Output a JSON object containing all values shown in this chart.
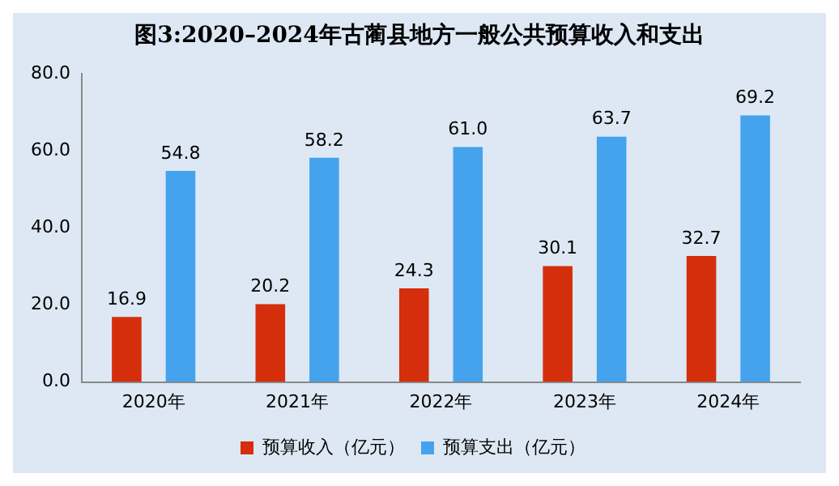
{
  "chart_data": {
    "type": "bar",
    "title": "图3:2020–2024年古蔺县地方一般公共预算收入和支出",
    "categories": [
      "2020年",
      "2021年",
      "2022年",
      "2023年",
      "2024年"
    ],
    "series": [
      {
        "name": "预算收入（亿元）",
        "color": "#d42e0c",
        "values": [
          16.9,
          20.2,
          24.3,
          30.1,
          32.7
        ],
        "value_labels": [
          "16.9",
          "20.2",
          "24.3",
          "30.1",
          "32.7"
        ]
      },
      {
        "name": "预算支出（亿元）",
        "color": "#44a3ec",
        "values": [
          54.8,
          58.2,
          61.0,
          63.7,
          69.2
        ],
        "value_labels": [
          "54.8",
          "58.2",
          "61.0",
          "63.7",
          "69.2"
        ]
      }
    ],
    "ylim": [
      0,
      80
    ],
    "yticks": [
      {
        "value": 0,
        "label": "0.0"
      },
      {
        "value": 20,
        "label": "20.0"
      },
      {
        "value": 40,
        "label": "40.0"
      },
      {
        "value": 60,
        "label": "60.0"
      },
      {
        "value": 80,
        "label": "80.0"
      }
    ],
    "grid": false,
    "legend": "bottom"
  }
}
